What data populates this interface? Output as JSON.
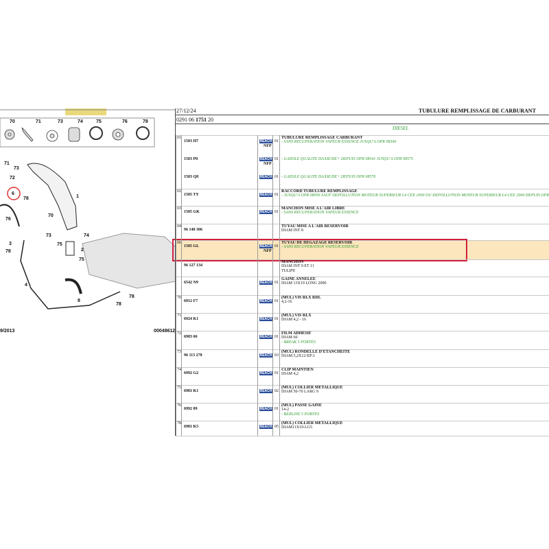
{
  "header": {
    "date": "27/12/24",
    "title": "TUBULURE REMPLISSAGE DE CARBURANT",
    "code_prefix": "0291 06",
    "code_bold": "1751",
    "code_suffix": "20",
    "variant": "DIESEL"
  },
  "diagram": {
    "strip_labels": [
      "70",
      "71",
      "73",
      "74",
      "75",
      "76",
      "78"
    ],
    "callouts": [
      "71",
      "73",
      "72",
      "6",
      "78",
      "76",
      "1",
      "70",
      "73",
      "74",
      "2",
      "75",
      "3",
      "78",
      "75",
      "4",
      "8",
      "78",
      "78"
    ],
    "footer_left": "9/2013",
    "footer_right": "00048612"
  },
  "rows": [
    {
      "num": "01",
      "title": "TUBULURE REMPLISSAGE CARBURANT",
      "parts": [
        {
          "ref": "1503 H7",
          "badge": "REACH",
          "qty": "01",
          "nfp": "NFP",
          "note": "- SANS RECUPERATION VAPEUR ESSENCE JUSQU'A OPR 08340"
        },
        {
          "ref": "1503 P0",
          "badge": "REACH",
          "qty": "01",
          "nfp": "NFP",
          "note": "- GAZOLE QUALITE DA/DE/DE+ DEPUIS OPR 08341 JUSQU'A OPR 08575"
        },
        {
          "ref": "1503 Q8",
          "badge": "REACH",
          "qty": "01",
          "note": "- GAZOLE QUALITE DA/DE/DE+ DEPUIS OPR 08576"
        }
      ],
      "notes": []
    },
    {
      "num": "02",
      "title": "RACCORD TUBULURE REMPLISSAGE",
      "parts": [
        {
          "ref": "1505 TY",
          "badge": "REACH",
          "qty": "01"
        }
      ],
      "notes": [
        {
          "text": "- JUSQU'A OPR 08056 SAUF DEPOLLUTION MOTEUR SUPERIEUR L4 CEE 2000 OU DEPOLLUTION MOTEUR SUPERIEUR L4 CEE 2000 DEPUIS OPR 08057",
          "style": "green"
        }
      ]
    },
    {
      "num": "03",
      "title": "MANCHON MISE A L'AIR LIBRE",
      "parts": [
        {
          "ref": "1505 GK",
          "badge": "REACH",
          "qty": "01"
        }
      ],
      "notes": [
        {
          "text": "- SANS RECUPERATION VAPEUR ESSENCE",
          "style": "green"
        }
      ]
    },
    {
      "num": "04",
      "title": "TUYAU MISE A L'AIR RESERVOIR",
      "parts": [
        {
          "ref": "96 140 306"
        }
      ],
      "notes": [
        {
          "text": "DIAM INT 8",
          "style": "plain"
        }
      ]
    },
    {
      "num": "06",
      "title": "TUYAU DE DEGAZAGE RESERVOIR",
      "highlight": true,
      "parts": [
        {
          "ref": "1505 GL",
          "badge": "REACH",
          "qty": "01",
          "nfp": "NFP"
        }
      ],
      "notes": [
        {
          "text": "- SANS RECUPERATION VAPEUR ESSENCE",
          "style": "green"
        }
      ]
    },
    {
      "title": "MANCHON",
      "parts": [
        {
          "ref": "96 127 134"
        }
      ],
      "notes": [
        {
          "text": "DIAM INT 9 ET 11",
          "style": "plain"
        },
        {
          "text": "TULIPE",
          "style": "italic"
        }
      ]
    },
    {
      "title": "GAINE ANNELEE",
      "parts": [
        {
          "ref": "6542 N9",
          "badge": "REACH",
          "qty": "01"
        }
      ],
      "notes": [
        {
          "text": "DIAM 13X19 LONG 2000",
          "style": "plain"
        }
      ]
    },
    {
      "num": "70",
      "title": "(MUL) VIS RLX RDL",
      "parts": [
        {
          "ref": "6912 F7",
          "badge": "REACH",
          "qty": "01"
        }
      ],
      "notes": [
        {
          "text": "4,2-16",
          "style": "plain"
        }
      ]
    },
    {
      "num": "71",
      "title": "(MUL) VIS RLX",
      "parts": [
        {
          "ref": "6924 K1",
          "badge": "REACH",
          "qty": "01"
        }
      ],
      "notes": [
        {
          "text": "DIAM 4,2 - 16",
          "style": "plain"
        }
      ]
    },
    {
      "num": "72",
      "title": "FILM ADHESIF",
      "parts": [
        {
          "ref": "6983 66",
          "badge": "REACH",
          "qty": "01"
        }
      ],
      "notes": [
        {
          "text": "DIAM 60",
          "style": "plain"
        },
        {
          "text": "- BREAK 5 PORTES",
          "style": "green"
        }
      ]
    },
    {
      "num": "73",
      "title": "(MUL) RONDELLE D'ETANCHEITE",
      "parts": [
        {
          "ref": "96 113 278",
          "badge": "REACH",
          "qty": "03"
        }
      ],
      "notes": [
        {
          "text": "DIAM.5,2X12-EP:1",
          "style": "plain"
        }
      ]
    },
    {
      "num": "74",
      "title": "CLIP MAINTIEN",
      "parts": [
        {
          "ref": "6992 G2",
          "badge": "REACH",
          "qty": "01"
        }
      ],
      "notes": [
        {
          "text": "DIAM 4,2",
          "style": "plain"
        }
      ]
    },
    {
      "num": "75",
      "title": "(MUL) COLLIER METALLIQUE",
      "parts": [
        {
          "ref": "6981 K1",
          "badge": "REACH",
          "qty": "02"
        }
      ],
      "notes": [
        {
          "text": "DIAM 50-70 LARG 9",
          "style": "plain"
        }
      ]
    },
    {
      "num": "76",
      "title": "(MUL) PASSE GAINE",
      "parts": [
        {
          "ref": "6992 09",
          "badge": "REACH",
          "qty": "01"
        }
      ],
      "notes": [
        {
          "text": "14-2",
          "style": "plain"
        },
        {
          "text": "- BERLINE 5 PORTES",
          "style": "green"
        }
      ]
    },
    {
      "num": "78",
      "title": "(MUL) COLLIER METALLIQUE",
      "parts": [
        {
          "ref": "6981 K5",
          "badge": "REACH",
          "qty": "05"
        }
      ],
      "notes": [
        {
          "text": "DIAM11X19-LG5",
          "style": "plain"
        }
      ]
    }
  ]
}
